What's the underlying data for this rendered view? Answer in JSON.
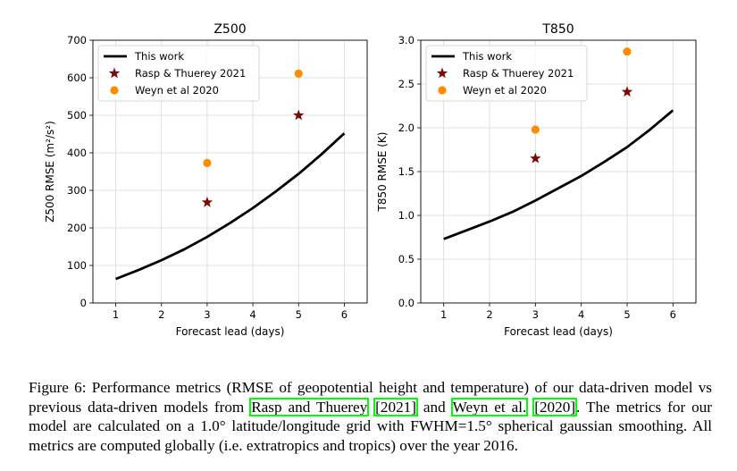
{
  "chart_data": [
    {
      "type": "line",
      "title": "Z500",
      "xlabel": "Forecast lead (days)",
      "ylabel": "Z500 RMSE (m²/s²)",
      "xlim": [
        0.5,
        6.5
      ],
      "ylim": [
        0,
        700
      ],
      "xticks": [
        "1",
        "2",
        "3",
        "4",
        "5",
        "6"
      ],
      "yticks": [
        "0",
        "100",
        "200",
        "300",
        "400",
        "500",
        "600",
        "700"
      ],
      "grid": true,
      "legend_position": "top-left",
      "series": [
        {
          "name": "This work",
          "kind": "line",
          "color": "#000000",
          "x": [
            1,
            1.5,
            2,
            2.5,
            3,
            3.5,
            4,
            4.5,
            5,
            5.5,
            6
          ],
          "y": [
            64,
            88,
            114,
            143,
            176,
            213,
            253,
            297,
            344,
            396,
            452
          ]
        },
        {
          "name": "Rasp & Thuerey 2021",
          "kind": "scatter",
          "marker": "star",
          "color": "#7b0a02",
          "x": [
            3,
            5
          ],
          "y": [
            268,
            500
          ]
        },
        {
          "name": "Weyn et al 2020",
          "kind": "scatter",
          "marker": "circle",
          "color": "#ff8c00",
          "x": [
            3,
            5
          ],
          "y": [
            373,
            611
          ]
        }
      ]
    },
    {
      "type": "line",
      "title": "T850",
      "xlabel": "Forecast lead (days)",
      "ylabel": "T850 RMSE (K)",
      "xlim": [
        0.5,
        6.5
      ],
      "ylim": [
        0,
        3
      ],
      "xticks": [
        "1",
        "2",
        "3",
        "4",
        "5",
        "6"
      ],
      "yticks": [
        "0.0",
        "0.5",
        "1.0",
        "1.5",
        "2.0",
        "2.5",
        "3.0"
      ],
      "grid": true,
      "legend_position": "top-left",
      "series": [
        {
          "name": "This work",
          "kind": "line",
          "color": "#000000",
          "x": [
            1,
            1.5,
            2,
            2.5,
            3,
            3.5,
            4,
            4.5,
            5,
            5.5,
            6
          ],
          "y": [
            0.73,
            0.83,
            0.93,
            1.04,
            1.17,
            1.31,
            1.45,
            1.61,
            1.78,
            1.98,
            2.2
          ]
        },
        {
          "name": "Rasp & Thuerey 2021",
          "kind": "scatter",
          "marker": "star",
          "color": "#7b0a02",
          "x": [
            3,
            5
          ],
          "y": [
            1.65,
            2.41
          ]
        },
        {
          "name": "Weyn et al 2020",
          "kind": "scatter",
          "marker": "circle",
          "color": "#ff8c00",
          "x": [
            3,
            5
          ],
          "y": [
            1.98,
            2.87
          ]
        }
      ]
    }
  ],
  "caption": {
    "part1": "Figure 6: Performance metrics (RMSE of geopotential height and temperature) of our data-driven model vs previous data-driven models from ",
    "cite1_name": "Rasp and Thuerey",
    "sp1": " ",
    "cite1_year": "[2021]",
    "and": " and ",
    "cite2_name": "Weyn et al.",
    "sp2": " ",
    "cite2_year": "[2020]",
    "part2": ". The metrics for our model are calculated on a 1.0° latitude/longitude grid with FWHM=1.5° spherical gaussian smoothing. All metrics are computed globally (i.e. extratropics and tropics) over the year 2016."
  }
}
